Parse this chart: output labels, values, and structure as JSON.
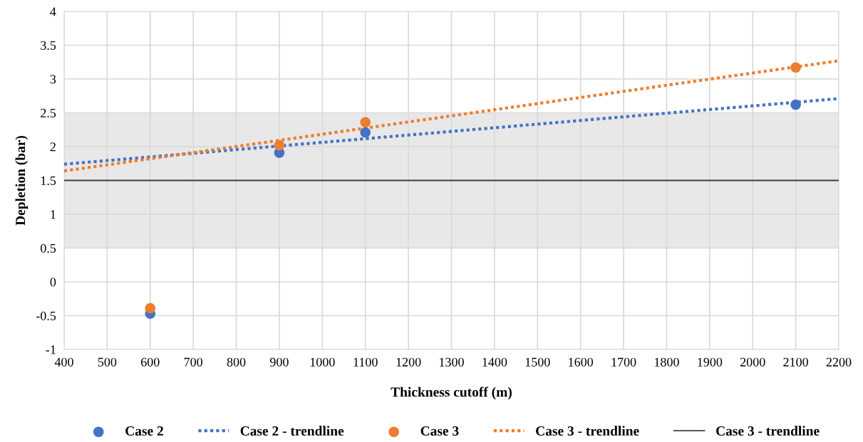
{
  "chart_data": {
    "type": "scatter",
    "xlabel": "Thickness cutoff (m)",
    "ylabel": "Depletion (bar)",
    "xlim": [
      400,
      2200
    ],
    "xticks": [
      400,
      500,
      600,
      700,
      800,
      900,
      1000,
      1100,
      1200,
      1300,
      1400,
      1500,
      1600,
      1700,
      1800,
      1900,
      2000,
      2100,
      2200
    ],
    "ylim": [
      -1,
      4
    ],
    "yticks": [
      -1,
      -0.5,
      0,
      0.5,
      1,
      1.5,
      2,
      2.5,
      3,
      3.5,
      4
    ],
    "grid": true,
    "legend": "bottom",
    "marker": "circle",
    "bands": [
      {
        "axis": "y",
        "from": 0.5,
        "to": 2.5,
        "color": "#e8e8e8"
      }
    ],
    "series": [
      {
        "name": "Case 2",
        "color": "#4472c4",
        "x": [
          600,
          900,
          1100,
          2100
        ],
        "values": [
          -0.47,
          1.91,
          2.21,
          2.62
        ]
      },
      {
        "name": "Case 2 - trendline",
        "type": "line",
        "line_style": "dotted",
        "marker": "none",
        "color": "#4472c4",
        "x": [
          400,
          2200
        ],
        "values": [
          1.74,
          2.71
        ]
      },
      {
        "name": "Case 3",
        "color": "#ed7d31",
        "x": [
          600,
          900,
          1100,
          2100
        ],
        "values": [
          -0.39,
          2.02,
          2.36,
          3.17
        ]
      },
      {
        "name": "Case 3 - trendline",
        "type": "line",
        "line_style": "dotted",
        "marker": "none",
        "color": "#ed7d31",
        "x": [
          400,
          2200
        ],
        "values": [
          1.64,
          3.27
        ]
      },
      {
        "name": "Case 3 - trendline",
        "type": "line",
        "line_style": "solid",
        "marker": "none",
        "color": "#404040",
        "x": [
          400,
          2200
        ],
        "values": [
          1.5,
          1.5
        ]
      }
    ]
  }
}
